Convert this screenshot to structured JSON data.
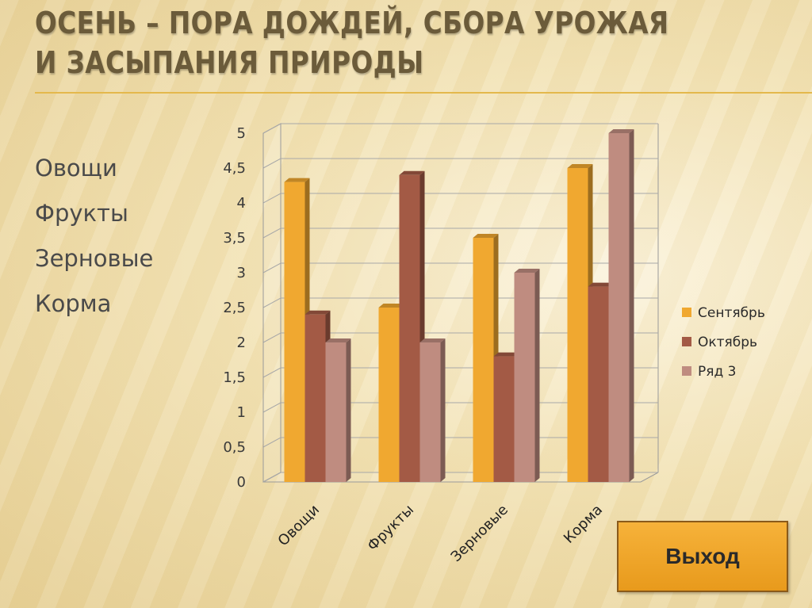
{
  "title": "ОСЕНЬ – ПОРА ДОЖДЕЙ, СБОРА УРОЖАЯ И ЗАСЫПАНИЯ ПРИРОДЫ",
  "side_list": [
    "Овощи",
    "Фрукты",
    "Зерновые",
    "Корма"
  ],
  "exit_button": "Выход",
  "chart_data": {
    "type": "bar",
    "categories": [
      "Овощи",
      "Фрукты",
      "Зерновые",
      "Корма"
    ],
    "series": [
      {
        "name": "Сентябрь",
        "values": [
          4.3,
          2.5,
          3.5,
          4.5
        ],
        "color": "#f0a830"
      },
      {
        "name": "Октябрь",
        "values": [
          2.4,
          4.4,
          1.8,
          2.8
        ],
        "color": "#a35a45"
      },
      {
        "name": "Ряд 3",
        "values": [
          2.0,
          2.0,
          3.0,
          5.0
        ],
        "color": "#bf8c80"
      }
    ],
    "ylim": [
      0,
      5
    ],
    "yticks": [
      "0",
      "0,5",
      "1",
      "1,5",
      "2",
      "2,5",
      "3",
      "3,5",
      "4",
      "4,5",
      "5"
    ],
    "grid": true,
    "legend": "right"
  }
}
